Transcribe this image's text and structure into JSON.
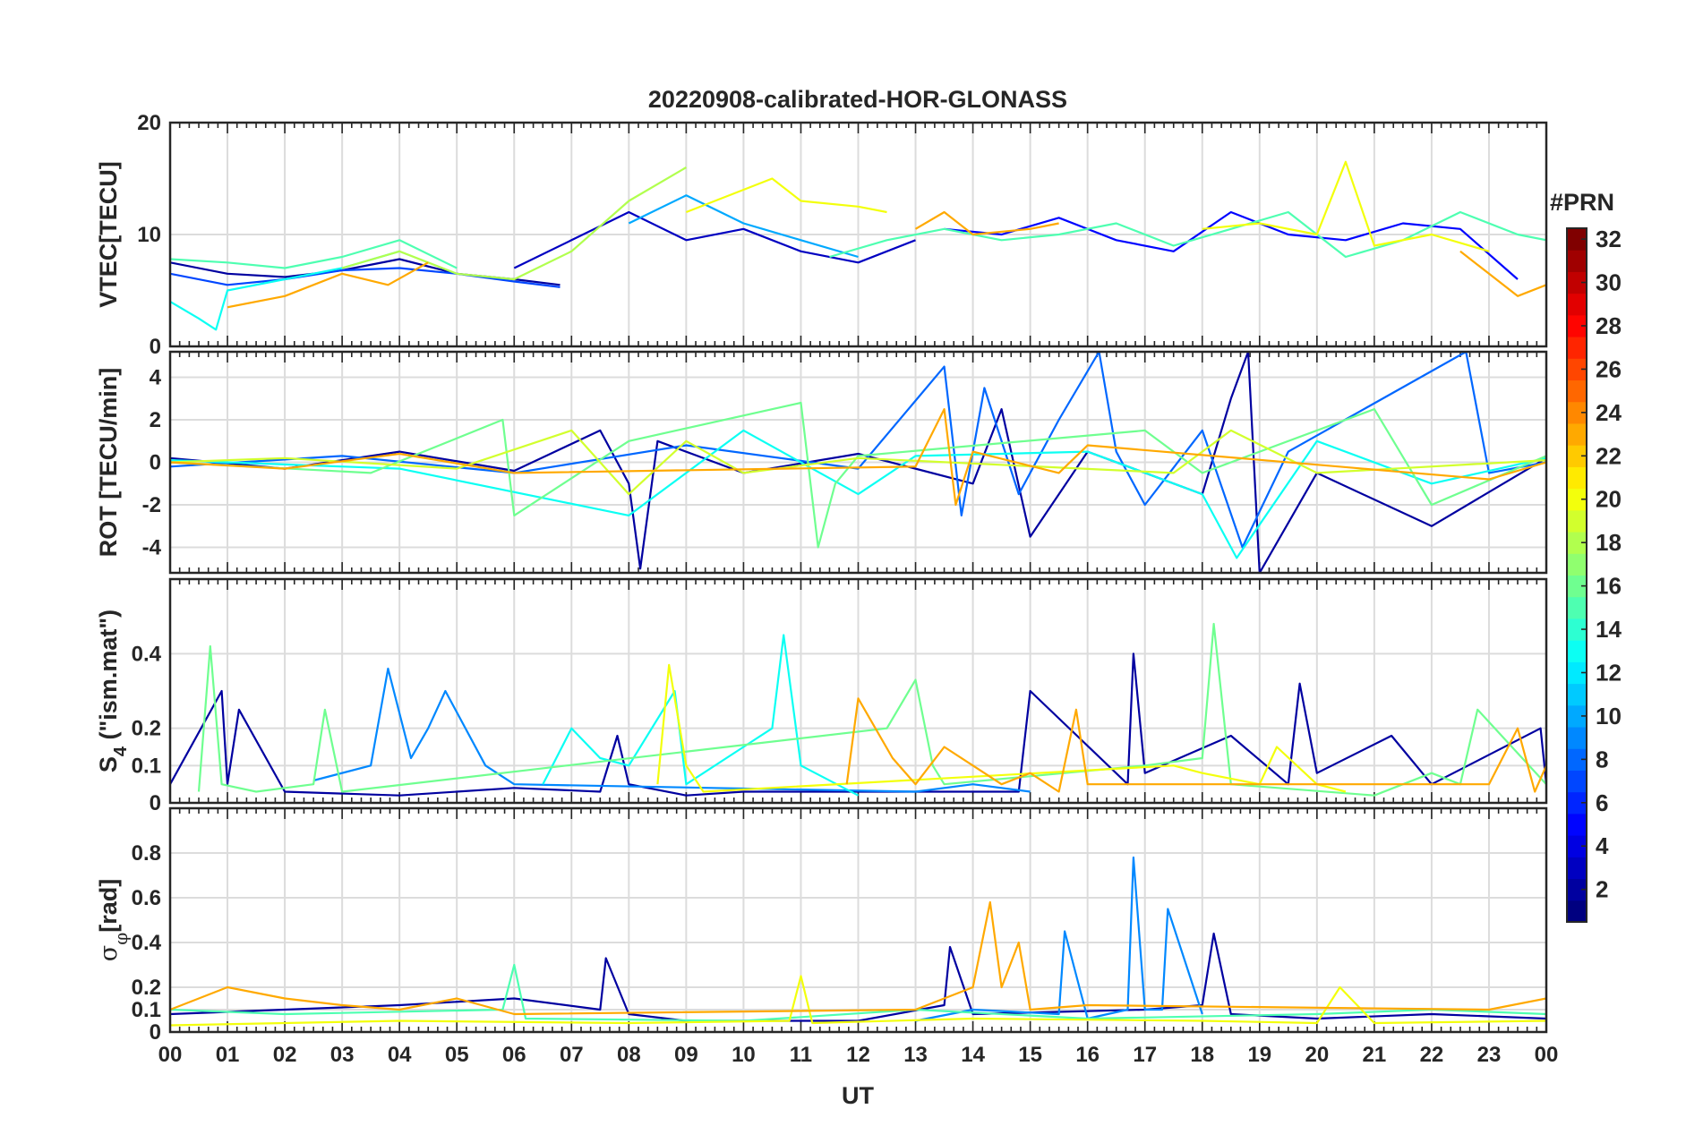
{
  "figure": {
    "title": "20220908-calibrated-HOR-GLONASS"
  },
  "chart_data": [
    {
      "type": "line",
      "panel": "vtec",
      "ylabel": "VTEC[TECU]",
      "xlabel": "",
      "xlim": [
        0,
        24
      ],
      "ylim": [
        0,
        20
      ],
      "yticks": [
        0,
        10,
        20
      ],
      "grid": true,
      "series": [
        {
          "color_prn": 2,
          "x": [
            0.0,
            1.0,
            2.0,
            3.0,
            4.0,
            5.0,
            6.0,
            6.8
          ],
          "y": [
            7.5,
            6.5,
            6.2,
            6.8,
            7.8,
            6.5,
            6.0,
            5.5
          ]
        },
        {
          "color_prn": 3,
          "x": [
            6.0,
            7.0,
            8.0,
            9.0,
            10.0,
            11.0,
            12.0,
            13.0
          ],
          "y": [
            7.0,
            9.5,
            12.0,
            9.5,
            10.5,
            8.5,
            7.5,
            9.5
          ]
        },
        {
          "color_prn": 5,
          "x": [
            13.5,
            14.5,
            15.5,
            16.5,
            17.5,
            18.5,
            19.5,
            20.5,
            21.5,
            22.5,
            23.5
          ],
          "y": [
            10.5,
            10.0,
            11.5,
            9.5,
            8.5,
            12.0,
            10.0,
            9.5,
            11.0,
            10.5,
            6.0
          ]
        },
        {
          "color_prn": 7,
          "x": [
            0.0,
            1.0,
            2.0,
            3.0,
            4.0,
            5.0,
            6.0,
            6.8
          ],
          "y": [
            6.5,
            5.5,
            6.0,
            6.8,
            7.0,
            6.5,
            5.8,
            5.3
          ]
        },
        {
          "color_prn": 10,
          "x": [
            8.0,
            9.0,
            10.0,
            11.0,
            12.0
          ],
          "y": [
            11.0,
            13.5,
            11.0,
            9.5,
            8.0
          ]
        },
        {
          "color_prn": 13,
          "x": [
            0.0,
            0.5,
            0.8,
            1.0,
            2.0,
            3.0,
            4.0
          ],
          "y": [
            4.0,
            2.5,
            1.5,
            5.0,
            6.0,
            7.0,
            8.5
          ]
        },
        {
          "color_prn": 15,
          "x": [
            0.0,
            1.0,
            2.0,
            3.0,
            4.0,
            5.0
          ],
          "y": [
            7.8,
            7.5,
            7.0,
            8.0,
            9.5,
            7.0
          ]
        },
        {
          "color_prn": 15,
          "x": [
            11.5,
            12.5,
            13.5,
            14.5,
            15.5,
            16.5,
            17.5,
            18.5,
            19.5,
            20.5,
            21.5,
            22.5,
            23.5,
            24.0
          ],
          "y": [
            8.0,
            9.5,
            10.5,
            9.5,
            10.0,
            11.0,
            9.0,
            10.5,
            12.0,
            8.0,
            9.5,
            12.0,
            10.0,
            9.5
          ]
        },
        {
          "color_prn": 18,
          "x": [
            3.0,
            4.0,
            5.0,
            6.0,
            7.0,
            8.0,
            9.0
          ],
          "y": [
            7.0,
            8.5,
            6.5,
            6.0,
            8.5,
            13.0,
            16.0
          ]
        },
        {
          "color_prn": 20,
          "x": [
            9.0,
            10.0,
            10.5,
            11.0,
            12.0,
            12.5
          ],
          "y": [
            12.0,
            14.0,
            15.0,
            13.0,
            12.5,
            12.0
          ]
        },
        {
          "color_prn": 20,
          "x": [
            18.0,
            19.0,
            20.0,
            20.5,
            21.0,
            22.0,
            23.0
          ],
          "y": [
            10.5,
            11.0,
            10.0,
            16.5,
            9.0,
            10.0,
            8.5
          ]
        },
        {
          "color_prn": 23,
          "x": [
            1.0,
            2.0,
            3.0,
            3.8,
            4.5
          ],
          "y": [
            3.5,
            4.5,
            6.5,
            5.5,
            7.5
          ]
        },
        {
          "color_prn": 23,
          "x": [
            13.0,
            13.5,
            14.0,
            15.0,
            15.5
          ],
          "y": [
            10.5,
            12.0,
            10.0,
            10.5,
            11.0
          ]
        },
        {
          "color_prn": 23,
          "x": [
            22.5,
            23.0,
            23.5,
            24.0
          ],
          "y": [
            8.5,
            6.5,
            4.5,
            5.5
          ]
        }
      ]
    },
    {
      "type": "line",
      "panel": "rot",
      "ylabel": "ROT [TECU/min]",
      "xlabel": "",
      "xlim": [
        0,
        24
      ],
      "ylim": [
        -5.2,
        5.2
      ],
      "yticks": [
        -4,
        -2,
        0,
        2,
        4
      ],
      "grid": true,
      "series": [
        {
          "color_prn": 2,
          "x": [
            0.0,
            2.0,
            4.0,
            6.0,
            7.5,
            8.0,
            8.2,
            8.5,
            10.0,
            12.0,
            14.0,
            14.5,
            15.0,
            16.0,
            18.0,
            18.5,
            18.8,
            19.0,
            20.0,
            22.0,
            24.0
          ],
          "y": [
            0.2,
            -0.3,
            0.5,
            -0.4,
            1.5,
            -1.0,
            -5.0,
            1.0,
            -0.5,
            0.4,
            -1.0,
            2.5,
            -3.5,
            0.5,
            -1.5,
            3.0,
            5.2,
            -5.2,
            -0.5,
            -3.0,
            0.2
          ]
        },
        {
          "color_prn": 8,
          "x": [
            0.0,
            3.0,
            6.0,
            9.0,
            12.0,
            13.5,
            13.8,
            14.2,
            14.8,
            15.5,
            16.2,
            16.5,
            17.0,
            18.0,
            18.7,
            19.5,
            22.6,
            23.0,
            24.0
          ],
          "y": [
            -0.2,
            0.3,
            -0.5,
            0.8,
            -0.3,
            4.5,
            -2.5,
            3.5,
            -1.5,
            2.0,
            5.2,
            0.5,
            -2.0,
            1.5,
            -4.0,
            0.5,
            5.2,
            -0.5,
            0.0
          ]
        },
        {
          "color_prn": 13,
          "x": [
            0.0,
            4.0,
            8.0,
            10.0,
            12.0,
            13.0,
            16.0,
            18.0,
            18.6,
            20.0,
            22.0,
            24.0
          ],
          "y": [
            0.1,
            -0.3,
            -2.5,
            1.5,
            -1.5,
            0.3,
            0.5,
            -1.5,
            -4.5,
            1.0,
            -1.0,
            0.2
          ]
        },
        {
          "color_prn": 16,
          "x": [
            0.0,
            3.5,
            5.8,
            6.0,
            8.0,
            11.0,
            11.3,
            11.6,
            12.0,
            17.0,
            18.0,
            21.0,
            22.0,
            24.0
          ],
          "y": [
            0.0,
            -0.5,
            2.0,
            -2.5,
            1.0,
            2.8,
            -4.0,
            -1.0,
            0.3,
            1.5,
            -0.5,
            2.5,
            -2.0,
            0.3
          ]
        },
        {
          "color_prn": 19,
          "x": [
            0.0,
            2.0,
            5.0,
            7.0,
            8.0,
            9.0,
            10.0,
            12.0,
            17.5,
            18.5,
            20.0,
            24.0
          ],
          "y": [
            0.0,
            0.2,
            -0.3,
            1.5,
            -1.5,
            1.0,
            -0.5,
            0.2,
            -0.5,
            1.5,
            -0.5,
            0.1
          ]
        },
        {
          "color_prn": 23,
          "x": [
            0.0,
            2.0,
            4.0,
            6.0,
            13.0,
            13.5,
            13.7,
            14.0,
            15.5,
            16.0,
            23.0,
            24.0
          ],
          "y": [
            0.0,
            -0.3,
            0.4,
            -0.5,
            -0.2,
            2.5,
            -2.0,
            0.5,
            -0.5,
            0.8,
            -0.8,
            0.0
          ]
        }
      ]
    },
    {
      "type": "line",
      "panel": "s4",
      "ylabel": "S4 (\"ism.mat\")",
      "ylabel_main": "S",
      "ylabel_sub": "4",
      "ylabel_rest": " (\"ism.mat\")",
      "xlabel": "",
      "xlim": [
        0,
        24
      ],
      "ylim": [
        0,
        0.6
      ],
      "yticks": [
        0,
        0.1,
        0.2,
        0.4
      ],
      "grid": true,
      "series": [
        {
          "color_prn": 2,
          "x": [
            0.0,
            0.9,
            1.0,
            1.2,
            2.0,
            4.0,
            6.0,
            7.5,
            7.8,
            8.0,
            9.0,
            10.0,
            14.8,
            15.0,
            16.7,
            16.8,
            17.0,
            18.5,
            19.5,
            19.7,
            20.0,
            21.3,
            22.0,
            23.9,
            24.0
          ],
          "y": [
            0.05,
            0.3,
            0.05,
            0.25,
            0.03,
            0.02,
            0.04,
            0.03,
            0.18,
            0.05,
            0.02,
            0.03,
            0.03,
            0.3,
            0.05,
            0.4,
            0.08,
            0.18,
            0.05,
            0.32,
            0.08,
            0.18,
            0.05,
            0.2,
            0.05
          ]
        },
        {
          "color_prn": 9,
          "x": [
            2.5,
            3.5,
            3.8,
            4.2,
            4.5,
            4.8,
            5.5,
            6.0,
            13.0,
            14.0,
            15.0
          ],
          "y": [
            0.06,
            0.1,
            0.36,
            0.12,
            0.2,
            0.3,
            0.1,
            0.05,
            0.03,
            0.05,
            0.03
          ]
        },
        {
          "color_prn": 13,
          "x": [
            6.5,
            7.0,
            7.5,
            8.0,
            8.8,
            9.0,
            10.0,
            10.5,
            10.7,
            11.0,
            12.0
          ],
          "y": [
            0.05,
            0.2,
            0.12,
            0.1,
            0.3,
            0.05,
            0.15,
            0.2,
            0.45,
            0.1,
            0.02
          ]
        },
        {
          "color_prn": 16,
          "x": [
            0.5,
            0.7,
            0.9,
            1.5,
            2.5,
            2.7,
            3.0,
            12.5,
            13.0,
            13.3,
            13.5,
            17.0,
            18.0,
            18.2,
            18.5,
            21.0,
            22.0,
            22.5,
            22.8,
            24.0
          ],
          "y": [
            0.03,
            0.42,
            0.05,
            0.03,
            0.05,
            0.25,
            0.03,
            0.2,
            0.33,
            0.1,
            0.05,
            0.1,
            0.12,
            0.48,
            0.05,
            0.02,
            0.08,
            0.05,
            0.25,
            0.05
          ]
        },
        {
          "color_prn": 20,
          "x": [
            8.5,
            8.7,
            9.0,
            9.3,
            17.5,
            18.0,
            19.0,
            19.3,
            20.0,
            20.5
          ],
          "y": [
            0.05,
            0.37,
            0.1,
            0.03,
            0.1,
            0.08,
            0.05,
            0.15,
            0.05,
            0.03
          ]
        },
        {
          "color_prn": 23,
          "x": [
            11.8,
            12.0,
            12.3,
            12.6,
            13.0,
            13.5,
            14.0,
            14.5,
            15.0,
            15.5,
            15.8,
            16.0,
            23.0,
            23.5,
            23.8,
            24.0
          ],
          "y": [
            0.05,
            0.28,
            0.2,
            0.12,
            0.05,
            0.15,
            0.1,
            0.05,
            0.08,
            0.03,
            0.25,
            0.05,
            0.05,
            0.2,
            0.03,
            0.1
          ]
        }
      ]
    },
    {
      "type": "line",
      "panel": "sigma_phi",
      "ylabel": "σφ[rad]",
      "ylabel_main": "σ",
      "ylabel_sub": "φ",
      "ylabel_rest": "[rad]",
      "xlabel": "UT",
      "xlim": [
        0,
        24
      ],
      "ylim": [
        0,
        1.0
      ],
      "yticks": [
        0,
        0.1,
        0.2,
        0.4,
        0.6,
        0.8
      ],
      "xticks": [
        "00",
        "01",
        "02",
        "03",
        "04",
        "05",
        "06",
        "07",
        "08",
        "09",
        "10",
        "11",
        "12",
        "13",
        "14",
        "15",
        "16",
        "17",
        "18",
        "19",
        "20",
        "21",
        "22",
        "23",
        "00"
      ],
      "grid": true,
      "series": [
        {
          "color_prn": 2,
          "x": [
            0.0,
            2.0,
            4.0,
            6.0,
            7.5,
            7.6,
            8.0,
            9.0,
            12.0,
            13.5,
            13.6,
            14.0,
            17.0,
            18.0,
            18.2,
            18.5,
            20.0,
            22.0,
            24.0
          ],
          "y": [
            0.08,
            0.1,
            0.12,
            0.15,
            0.1,
            0.33,
            0.08,
            0.05,
            0.05,
            0.12,
            0.38,
            0.08,
            0.1,
            0.12,
            0.44,
            0.08,
            0.06,
            0.08,
            0.06
          ]
        },
        {
          "color_prn": 9,
          "x": [
            13.0,
            14.0,
            15.5,
            15.6,
            16.0,
            16.7,
            16.8,
            17.0,
            17.3,
            17.4,
            18.0
          ],
          "y": [
            0.05,
            0.1,
            0.08,
            0.45,
            0.06,
            0.1,
            0.78,
            0.1,
            0.1,
            0.55,
            0.08
          ]
        },
        {
          "color_prn": 15,
          "x": [
            0.0,
            2.0,
            5.8,
            6.0,
            6.2,
            10.0,
            13.0,
            16.0,
            20.0,
            22.0,
            24.0
          ],
          "y": [
            0.1,
            0.08,
            0.1,
            0.3,
            0.06,
            0.05,
            0.1,
            0.06,
            0.08,
            0.1,
            0.08
          ]
        },
        {
          "color_prn": 20,
          "x": [
            0.0,
            4.0,
            8.0,
            10.8,
            11.0,
            11.2,
            14.0,
            18.0,
            20.0,
            20.4,
            21.0,
            24.0
          ],
          "y": [
            0.03,
            0.05,
            0.04,
            0.05,
            0.25,
            0.04,
            0.06,
            0.05,
            0.04,
            0.2,
            0.04,
            0.05
          ]
        },
        {
          "color_prn": 23,
          "x": [
            0.0,
            1.0,
            2.0,
            3.0,
            4.0,
            5.0,
            6.0,
            13.0,
            14.0,
            14.3,
            14.5,
            14.8,
            15.0,
            16.0,
            23.0,
            24.0
          ],
          "y": [
            0.1,
            0.2,
            0.15,
            0.12,
            0.1,
            0.15,
            0.08,
            0.1,
            0.2,
            0.58,
            0.2,
            0.4,
            0.1,
            0.12,
            0.1,
            0.15
          ]
        }
      ]
    }
  ],
  "colorbar": {
    "label": "#PRN",
    "colormap": "jet",
    "range": [
      1,
      32
    ],
    "ticks": [
      "2",
      "4",
      "6",
      "8",
      "10",
      "12",
      "14",
      "16",
      "18",
      "20",
      "22",
      "24",
      "26",
      "28",
      "30",
      "32"
    ]
  }
}
